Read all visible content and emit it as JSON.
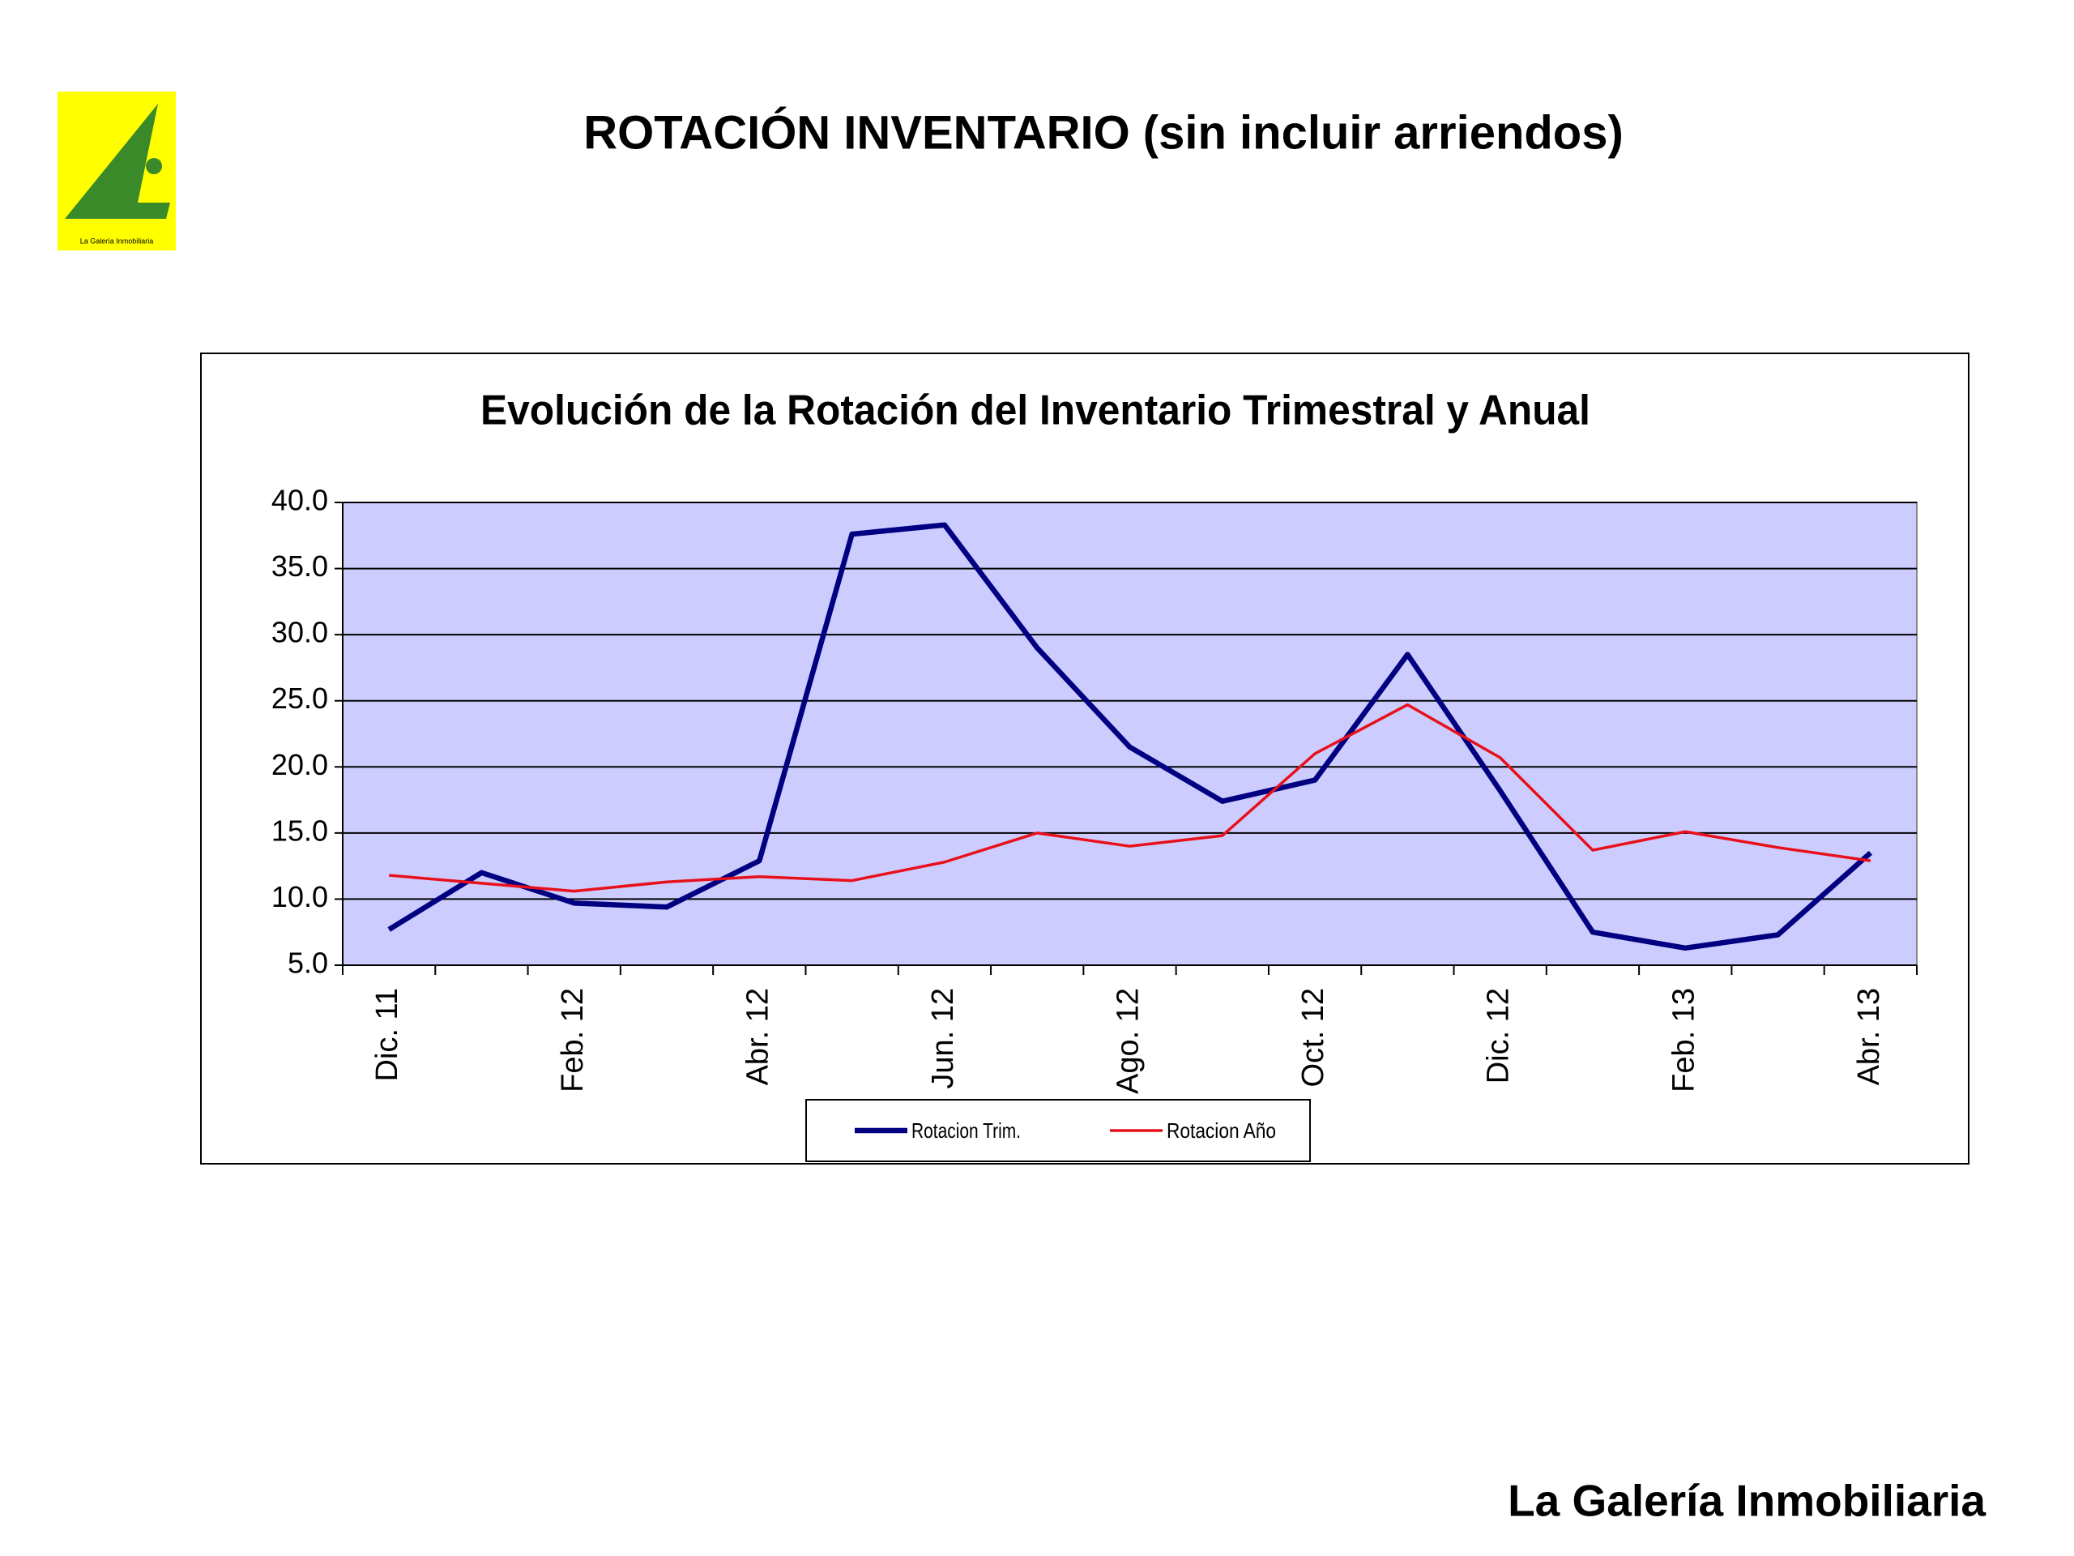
{
  "header": {
    "title": "ROTACIÓN  INVENTARIO (sin incluir arriendos)"
  },
  "logo": {
    "text": "La Galería Inmobiliaria"
  },
  "footer": {
    "text": "La Galería Inmobiliaria"
  },
  "chart_data": {
    "type": "line",
    "title": "Evolución de la Rotación del Inventario Trimestral y Anual",
    "categories": [
      "Dic. 11",
      null,
      "Feb. 12",
      null,
      "Abr. 12",
      null,
      "Jun. 12",
      null,
      "Ago. 12",
      null,
      "Oct. 12",
      null,
      "Dic. 12",
      null,
      "Feb. 13",
      null,
      "Abr. 13"
    ],
    "series": [
      {
        "name": "Rotacion Trim.",
        "color": "#000080",
        "values": [
          7.7,
          12.0,
          9.7,
          9.4,
          12.9,
          37.6,
          38.3,
          29.0,
          21.5,
          17.4,
          19.0,
          28.5,
          18.2,
          7.5,
          6.3,
          7.3,
          13.5
        ]
      },
      {
        "name": "Rotacion Año",
        "color": "#e8101a",
        "values": [
          11.8,
          11.2,
          10.6,
          11.3,
          11.7,
          11.4,
          12.8,
          15.0,
          14.0,
          14.8,
          21.0,
          24.7,
          20.7,
          13.7,
          15.1,
          13.9,
          12.9
        ]
      }
    ],
    "ylim": [
      5,
      40
    ],
    "yticks": [
      {
        "value": 5,
        "label": "5.0"
      },
      {
        "value": 10,
        "label": "10.0"
      },
      {
        "value": 15,
        "label": "15.0"
      },
      {
        "value": 20,
        "label": "20.0"
      },
      {
        "value": 25,
        "label": "25.0"
      },
      {
        "value": 30,
        "label": "30.0"
      },
      {
        "value": 35,
        "label": "35.0"
      },
      {
        "value": 40,
        "label": "40.0"
      }
    ],
    "grid": true,
    "plot_background": "#ccccff",
    "legend": "bottom"
  }
}
